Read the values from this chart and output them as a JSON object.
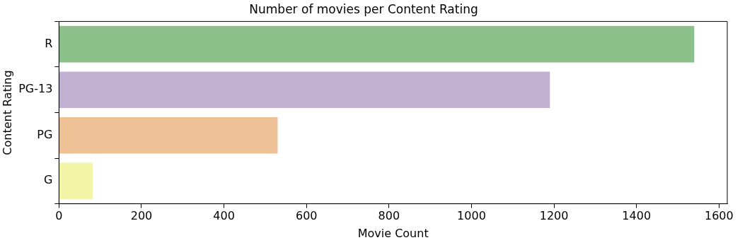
{
  "chart_data": {
    "type": "bar",
    "orientation": "horizontal",
    "title": "Number of movies per Content Rating",
    "xlabel": "Movie Count",
    "ylabel": "Content Rating",
    "categories": [
      "R",
      "PG-13",
      "PG",
      "G"
    ],
    "values": [
      1540,
      1190,
      530,
      82
    ],
    "colors": [
      "#8bc08a",
      "#c0b1d0",
      "#eec096",
      "#f2f4a6"
    ],
    "xlim": [
      0,
      1620
    ],
    "xticks": [
      0,
      200,
      400,
      600,
      800,
      1000,
      1200,
      1400,
      1600
    ],
    "grid": false,
    "legend": false
  }
}
